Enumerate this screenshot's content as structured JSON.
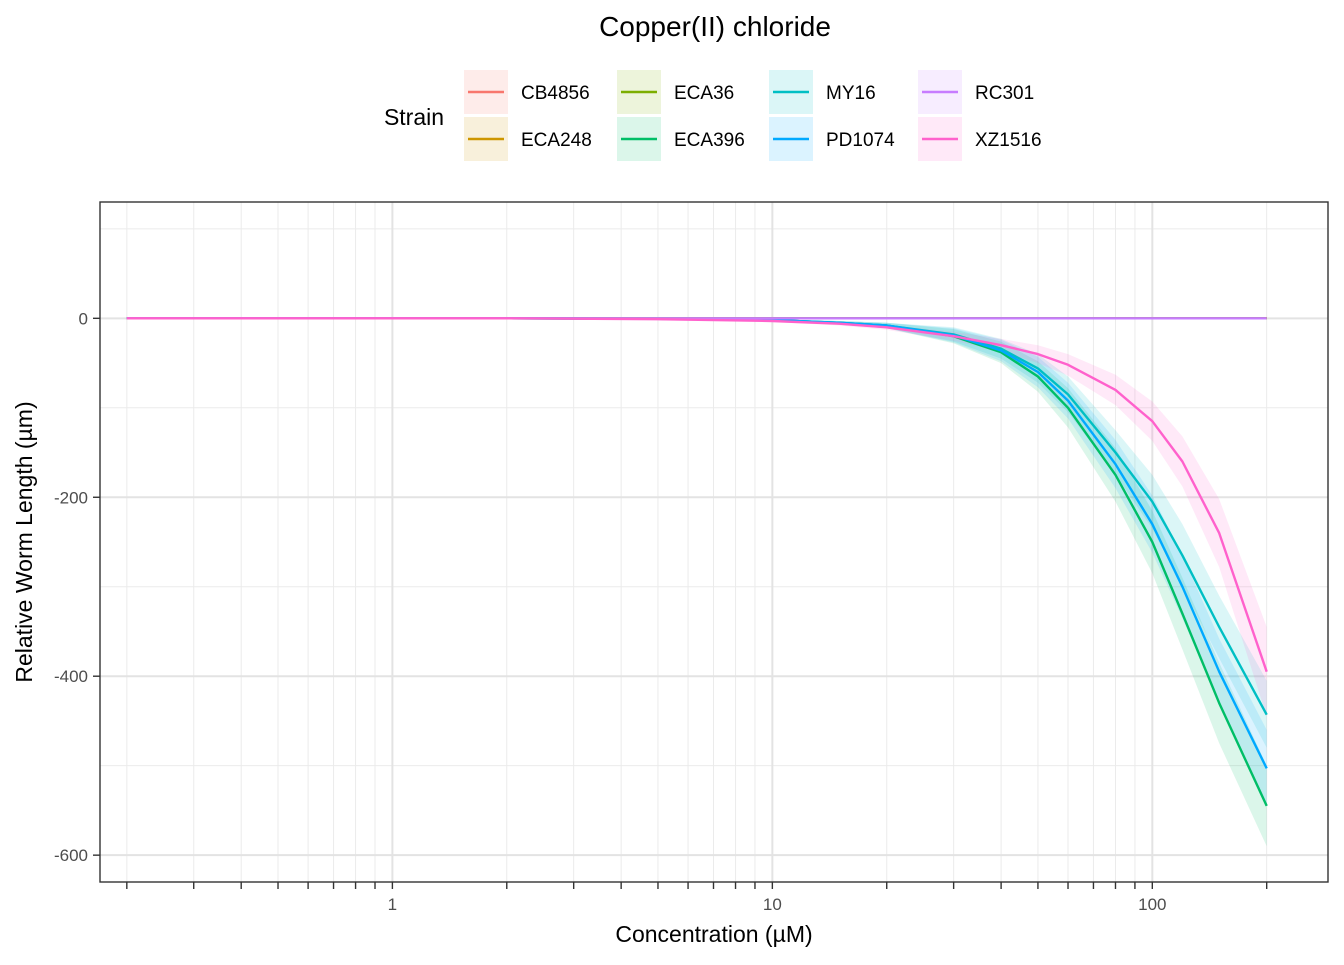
{
  "chart_data": {
    "type": "line",
    "title": "Copper(II) chloride",
    "xlabel": "Concentration (µM)",
    "ylabel": "Relative Worm Length (µm)",
    "x_scale": "log10",
    "xlim": [
      0.17,
      290
    ],
    "ylim": [
      -630,
      130
    ],
    "x_major_ticks": [
      1,
      10,
      100
    ],
    "x_major_labels": [
      "1",
      "10",
      "100"
    ],
    "y_ticks": [
      0,
      -200,
      -400,
      -600
    ],
    "y_tick_labels": [
      "0",
      "-200",
      "-400",
      "-600"
    ],
    "legend": {
      "title": "Strain",
      "placement": "top",
      "entries": [
        "CB4856",
        "ECA248",
        "ECA36",
        "ECA396",
        "MY16",
        "PD1074",
        "RC301",
        "XZ1516"
      ]
    },
    "x": [
      0.2,
      0.5,
      1,
      2,
      5,
      10,
      15,
      20,
      30,
      40,
      50,
      60,
      80,
      100,
      120,
      150,
      200
    ],
    "series": [
      {
        "name": "CB4856",
        "color": "#F8766D",
        "values": [
          0,
          0,
          0,
          0,
          0,
          0,
          0,
          0,
          0,
          0,
          0,
          0,
          0,
          0,
          0,
          0,
          0
        ]
      },
      {
        "name": "ECA248",
        "color": "#CD9600",
        "values": [
          0,
          0,
          0,
          0,
          0,
          0,
          0,
          0,
          0,
          0,
          0,
          0,
          0,
          0,
          0,
          0,
          0
        ]
      },
      {
        "name": "ECA36",
        "color": "#7CAE00",
        "values": [
          0,
          0,
          0,
          0,
          0,
          0,
          0,
          0,
          0,
          0,
          0,
          0,
          0,
          0,
          0,
          0,
          0
        ]
      },
      {
        "name": "ECA396",
        "color": "#00BE67",
        "values": [
          0,
          0,
          0,
          0,
          -0.5,
          -2,
          -5,
          -8,
          -20,
          -38,
          -65,
          -100,
          -175,
          -250,
          -330,
          -430,
          -545
        ],
        "ci_lower": [
          0,
          0,
          0,
          0,
          -1,
          -3,
          -7,
          -11,
          -28,
          -50,
          -82,
          -122,
          -205,
          -285,
          -370,
          -475,
          -590
        ],
        "ci_upper": [
          0,
          0,
          0,
          0,
          0,
          -1,
          -3,
          -5,
          -12,
          -26,
          -48,
          -78,
          -145,
          -215,
          -290,
          -385,
          -500
        ]
      },
      {
        "name": "MY16",
        "color": "#00BFC4",
        "values": [
          0,
          0,
          0,
          0,
          -0.5,
          -2,
          -5,
          -8,
          -18,
          -34,
          -56,
          -85,
          -150,
          -205,
          -265,
          -345,
          -443
        ],
        "ci_lower": [
          0,
          0,
          0,
          0,
          -1,
          -3,
          -7,
          -11,
          -26,
          -45,
          -72,
          -105,
          -175,
          -235,
          -300,
          -380,
          -480
        ],
        "ci_upper": [
          0,
          0,
          0,
          0,
          0,
          -1,
          -3,
          -5,
          -10,
          -23,
          -40,
          -65,
          -125,
          -175,
          -230,
          -310,
          -405
        ]
      },
      {
        "name": "PD1074",
        "color": "#00A9FF",
        "values": [
          0,
          0,
          0,
          0,
          -0.5,
          -2,
          -5,
          -8,
          -19,
          -36,
          -60,
          -92,
          -163,
          -230,
          -300,
          -395,
          -503
        ],
        "ci_lower": [
          0,
          0,
          0,
          0,
          -1,
          -3,
          -7,
          -11,
          -27,
          -48,
          -77,
          -112,
          -190,
          -262,
          -335,
          -432,
          -545
        ],
        "ci_upper": [
          0,
          0,
          0,
          0,
          0,
          -1,
          -3,
          -5,
          -11,
          -24,
          -43,
          -72,
          -136,
          -198,
          -265,
          -358,
          -460
        ]
      },
      {
        "name": "RC301",
        "color": "#C77CFF",
        "values": [
          0,
          0,
          0,
          0,
          0,
          0,
          0,
          0,
          0,
          0,
          0,
          0,
          0,
          0,
          0,
          0,
          0
        ]
      },
      {
        "name": "XZ1516",
        "color": "#FF61CC",
        "values": [
          0,
          0,
          0,
          0,
          -1,
          -3,
          -6,
          -10,
          -20,
          -30,
          -40,
          -52,
          -80,
          -115,
          -160,
          -240,
          -395
        ],
        "ci_lower": [
          0,
          0,
          0,
          0,
          -1.5,
          -4,
          -8,
          -13,
          -25,
          -37,
          -50,
          -64,
          -97,
          -137,
          -188,
          -278,
          -445
        ],
        "ci_upper": [
          0,
          0,
          0,
          0,
          0,
          -2,
          -4,
          -7,
          -15,
          -23,
          -30,
          -40,
          -63,
          -93,
          -132,
          -202,
          -345
        ]
      }
    ]
  }
}
